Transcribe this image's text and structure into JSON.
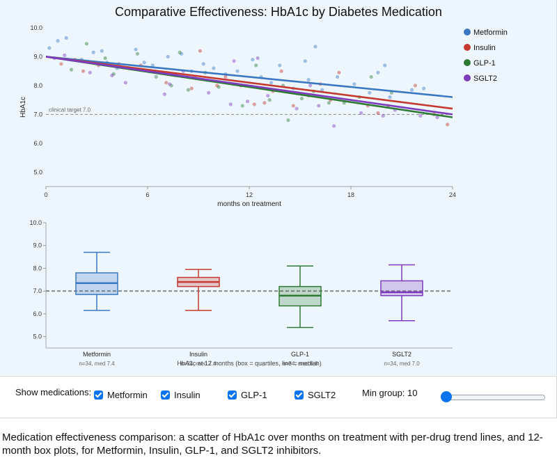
{
  "colors": {
    "Metformin": "#3b78c2",
    "Insulin": "#c43a2f",
    "GLP-1": "#2e7a35",
    "SGLT2": "#7d3bbd",
    "control_accent": "#0a73ef"
  },
  "chart_data": [
    {
      "type": "scatter",
      "title": "Comparative Effectiveness: HbA1c by Diabetes Medication",
      "xlabel": "months on treatment",
      "ylabel": "HbA1c",
      "xlim": [
        0,
        24
      ],
      "ylim": [
        4.5,
        10.0
      ],
      "xticks": [
        0,
        6,
        12,
        18,
        24
      ],
      "yticks": [
        5.0,
        6.0,
        7.0,
        8.0,
        9.0,
        10.0
      ],
      "yticklabels": [
        "5.0",
        "6.0",
        "7.0",
        "8.0",
        "9.0",
        "10.0"
      ],
      "grid": false,
      "legend": "top-right",
      "reference_line": {
        "y": 7.0,
        "label": "clinical target 7.0"
      },
      "series": [
        {
          "name": "Metformin",
          "trend": [
            [
              0,
              9.0
            ],
            [
              24,
              7.6
            ]
          ],
          "points": [
            [
              0.2,
              9.3
            ],
            [
              0.7,
              9.55
            ],
            [
              1.2,
              9.65
            ],
            [
              2.1,
              8.9
            ],
            [
              2.8,
              9.15
            ],
            [
              3.3,
              9.2
            ],
            [
              3.6,
              8.8
            ],
            [
              4.2,
              8.6
            ],
            [
              5.3,
              9.25
            ],
            [
              5.8,
              8.8
            ],
            [
              6.3,
              8.7
            ],
            [
              7.2,
              9.0
            ],
            [
              8.0,
              9.1
            ],
            [
              8.6,
              8.5
            ],
            [
              9.3,
              8.75
            ],
            [
              9.9,
              8.6
            ],
            [
              10.6,
              8.4
            ],
            [
              11.3,
              8.5
            ],
            [
              12.2,
              8.9
            ],
            [
              12.7,
              8.3
            ],
            [
              13.3,
              8.1
            ],
            [
              13.8,
              8.7
            ],
            [
              14.6,
              7.9
            ],
            [
              15.3,
              8.85
            ],
            [
              15.5,
              8.2
            ],
            [
              15.9,
              9.35
            ],
            [
              16.3,
              7.85
            ],
            [
              17.2,
              8.3
            ],
            [
              18.2,
              8.05
            ],
            [
              19.1,
              7.75
            ],
            [
              19.6,
              8.45
            ],
            [
              20.0,
              8.7
            ],
            [
              20.3,
              7.6
            ],
            [
              21.6,
              7.85
            ],
            [
              22.3,
              7.9
            ]
          ]
        },
        {
          "name": "Insulin",
          "trend": [
            [
              0,
              9.0
            ],
            [
              24,
              7.2
            ]
          ],
          "points": [
            [
              0.9,
              8.75
            ],
            [
              1.7,
              8.9
            ],
            [
              2.2,
              8.5
            ],
            [
              3.1,
              8.7
            ],
            [
              4.3,
              8.75
            ],
            [
              5.6,
              8.7
            ],
            [
              7.1,
              8.1
            ],
            [
              7.6,
              8.4
            ],
            [
              8.6,
              7.9
            ],
            [
              9.1,
              9.2
            ],
            [
              10.1,
              8.0
            ],
            [
              10.6,
              8.3
            ],
            [
              11.5,
              8.0
            ],
            [
              12.3,
              7.35
            ],
            [
              12.9,
              7.4
            ],
            [
              13.4,
              7.8
            ],
            [
              13.9,
              8.5
            ],
            [
              14.6,
              7.3
            ],
            [
              15.5,
              7.65
            ],
            [
              16.2,
              8.05
            ],
            [
              16.8,
              7.5
            ],
            [
              17.3,
              8.45
            ],
            [
              19.0,
              7.3
            ],
            [
              19.6,
              7.05
            ],
            [
              20.2,
              7.3
            ],
            [
              21.8,
              8.0
            ],
            [
              22.9,
              7.0
            ],
            [
              23.7,
              6.65
            ]
          ]
        },
        {
          "name": "GLP-1",
          "trend": [
            [
              0,
              9.0
            ],
            [
              24,
              6.9
            ]
          ],
          "points": [
            [
              1.5,
              8.55
            ],
            [
              2.4,
              9.45
            ],
            [
              3.5,
              8.95
            ],
            [
              4.0,
              8.4
            ],
            [
              5.4,
              9.1
            ],
            [
              6.5,
              8.3
            ],
            [
              7.4,
              8.0
            ],
            [
              7.9,
              9.15
            ],
            [
              8.4,
              7.85
            ],
            [
              9.4,
              8.45
            ],
            [
              10.2,
              7.95
            ],
            [
              11.6,
              7.3
            ],
            [
              12.4,
              8.7
            ],
            [
              13.2,
              7.5
            ],
            [
              14.0,
              8.0
            ],
            [
              14.3,
              6.8
            ],
            [
              15.1,
              7.55
            ],
            [
              15.8,
              7.8
            ],
            [
              16.7,
              7.4
            ],
            [
              17.6,
              7.4
            ],
            [
              18.5,
              7.6
            ],
            [
              19.2,
              8.3
            ],
            [
              20.4,
              7.75
            ]
          ]
        },
        {
          "name": "SGLT2",
          "trend": [
            [
              0,
              9.0
            ],
            [
              24,
              7.0
            ]
          ],
          "points": [
            [
              0.5,
              8.95
            ],
            [
              1.1,
              9.05
            ],
            [
              2.6,
              8.45
            ],
            [
              3.9,
              8.35
            ],
            [
              4.7,
              8.1
            ],
            [
              6.1,
              8.5
            ],
            [
              7.0,
              7.7
            ],
            [
              7.3,
              8.05
            ],
            [
              8.1,
              8.5
            ],
            [
              8.8,
              8.3
            ],
            [
              9.6,
              7.75
            ],
            [
              10.9,
              7.35
            ],
            [
              11.1,
              8.85
            ],
            [
              11.9,
              7.45
            ],
            [
              12.5,
              8.95
            ],
            [
              13.1,
              7.65
            ],
            [
              14.8,
              7.2
            ],
            [
              15.6,
              8.0
            ],
            [
              16.1,
              7.3
            ],
            [
              17.0,
              6.6
            ],
            [
              18.6,
              7.05
            ],
            [
              19.9,
              6.95
            ],
            [
              20.6,
              7.15
            ],
            [
              22.1,
              6.95
            ],
            [
              23.1,
              6.9
            ]
          ]
        }
      ]
    },
    {
      "type": "box",
      "title": "HbA1c at 12 months (box = quartiles, line = median)",
      "ylim": [
        4.5,
        10.0
      ],
      "yticks": [
        5.0,
        6.0,
        7.0,
        8.0,
        9.0,
        10.0
      ],
      "yticklabels": [
        "5.0",
        "6.0",
        "7.0",
        "8.0",
        "9.0",
        "10.0"
      ],
      "reference_line": {
        "y": 7.0
      },
      "categories": [
        "Metformin",
        "Insulin",
        "GLP-1",
        "SGLT2"
      ],
      "boxes": [
        {
          "name": "Metformin",
          "min": 6.15,
          "q1": 6.85,
          "median": 7.35,
          "q3": 7.8,
          "max": 8.7,
          "note": "n=34, med 7.4"
        },
        {
          "name": "Insulin",
          "min": 6.15,
          "q1": 7.2,
          "median": 7.4,
          "q3": 7.6,
          "max": 7.95,
          "note": "n=34, med 7.4"
        },
        {
          "name": "GLP-1",
          "min": 5.4,
          "q1": 6.35,
          "median": 6.8,
          "q3": 7.2,
          "max": 8.1,
          "note": "n=34, med 6.8"
        },
        {
          "name": "SGLT2",
          "min": 5.7,
          "q1": 6.8,
          "median": 6.95,
          "q3": 7.45,
          "max": 8.15,
          "note": "n=34, med 7.0"
        }
      ]
    }
  ],
  "controls": {
    "show_label": "Show medications:",
    "medications": [
      {
        "label": "Metformin",
        "checked": true
      },
      {
        "label": "Insulin",
        "checked": true
      },
      {
        "label": "GLP-1",
        "checked": true
      },
      {
        "label": "SGLT2",
        "checked": true
      }
    ],
    "min_group_label": "Min group: 10",
    "min_group_value": 10
  },
  "caption": "Medication effectiveness comparison: a scatter of HbA1c over months on treatment with per-drug trend lines, and 12-month box plots, for Metformin, Insulin, GLP-1, and SGLT2 inhibitors."
}
